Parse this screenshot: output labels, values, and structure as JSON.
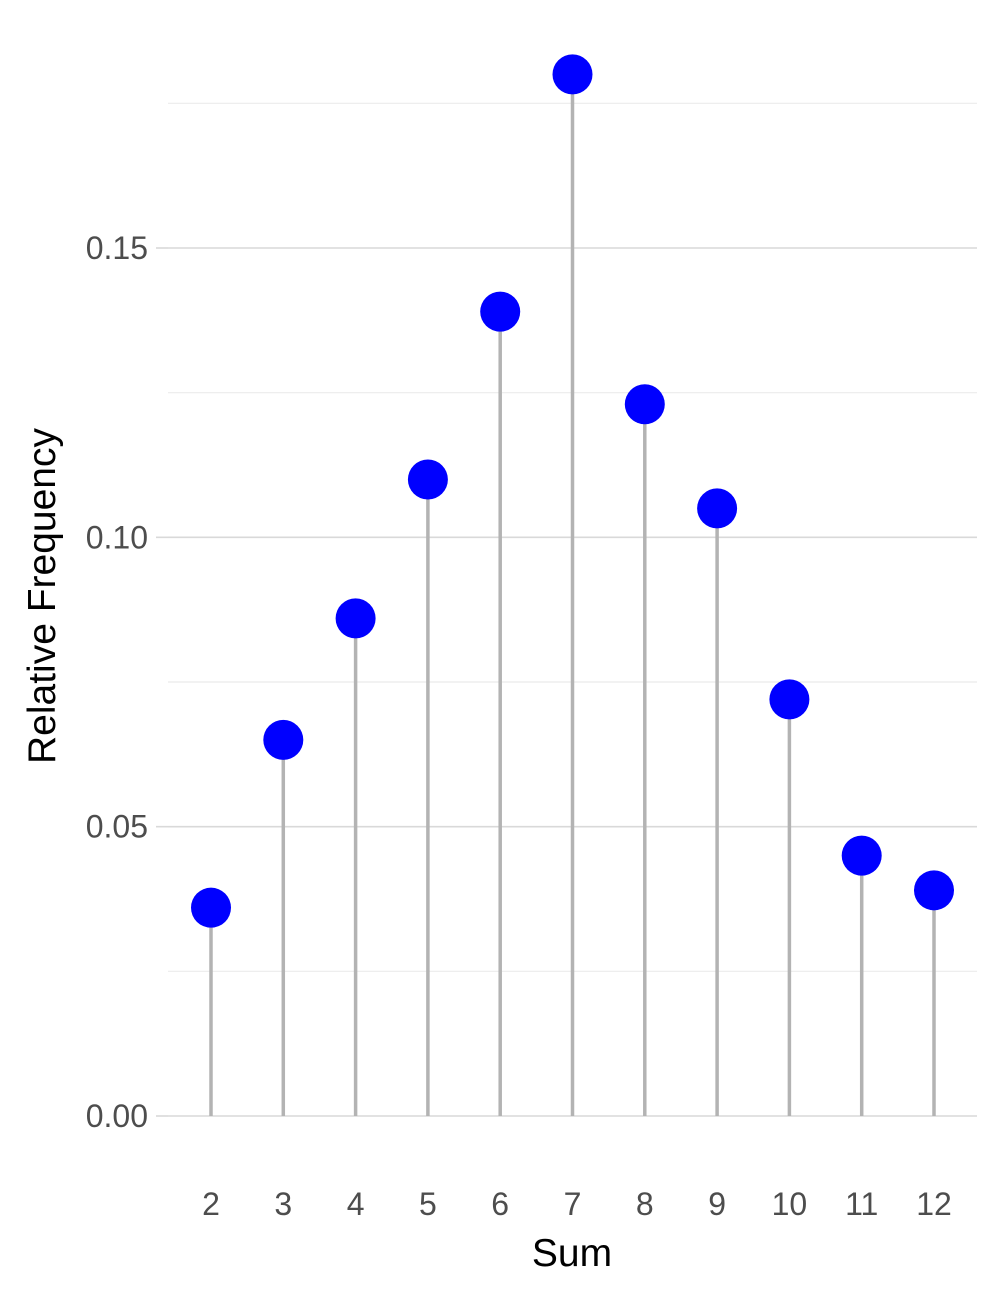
{
  "chart_data": {
    "type": "lollipop",
    "title": "",
    "xlabel": "Sum",
    "ylabel": "Relative Frequency",
    "categories": [
      "2",
      "3",
      "4",
      "5",
      "6",
      "7",
      "8",
      "9",
      "10",
      "11",
      "12"
    ],
    "values": [
      0.036,
      0.065,
      0.086,
      0.11,
      0.139,
      0.18,
      0.123,
      0.105,
      0.072,
      0.045,
      0.039
    ],
    "ylim": [
      -0.008,
      0.185
    ],
    "y_ticks": [
      0.0,
      0.05,
      0.1,
      0.15
    ],
    "y_tick_labels": [
      "0.00",
      "0.05",
      "0.10",
      "0.15"
    ],
    "y_minor_ticks": [
      0.025,
      0.075,
      0.125,
      0.175
    ],
    "grid": true,
    "legend": "none",
    "colors": {
      "point": "#0000ff",
      "stem": "#b3b3b3",
      "grid_major": "#d9d9d9",
      "grid_minor": "#ebebeb",
      "tick_text": "#4d4d4d",
      "axis_title": "#000000"
    }
  }
}
